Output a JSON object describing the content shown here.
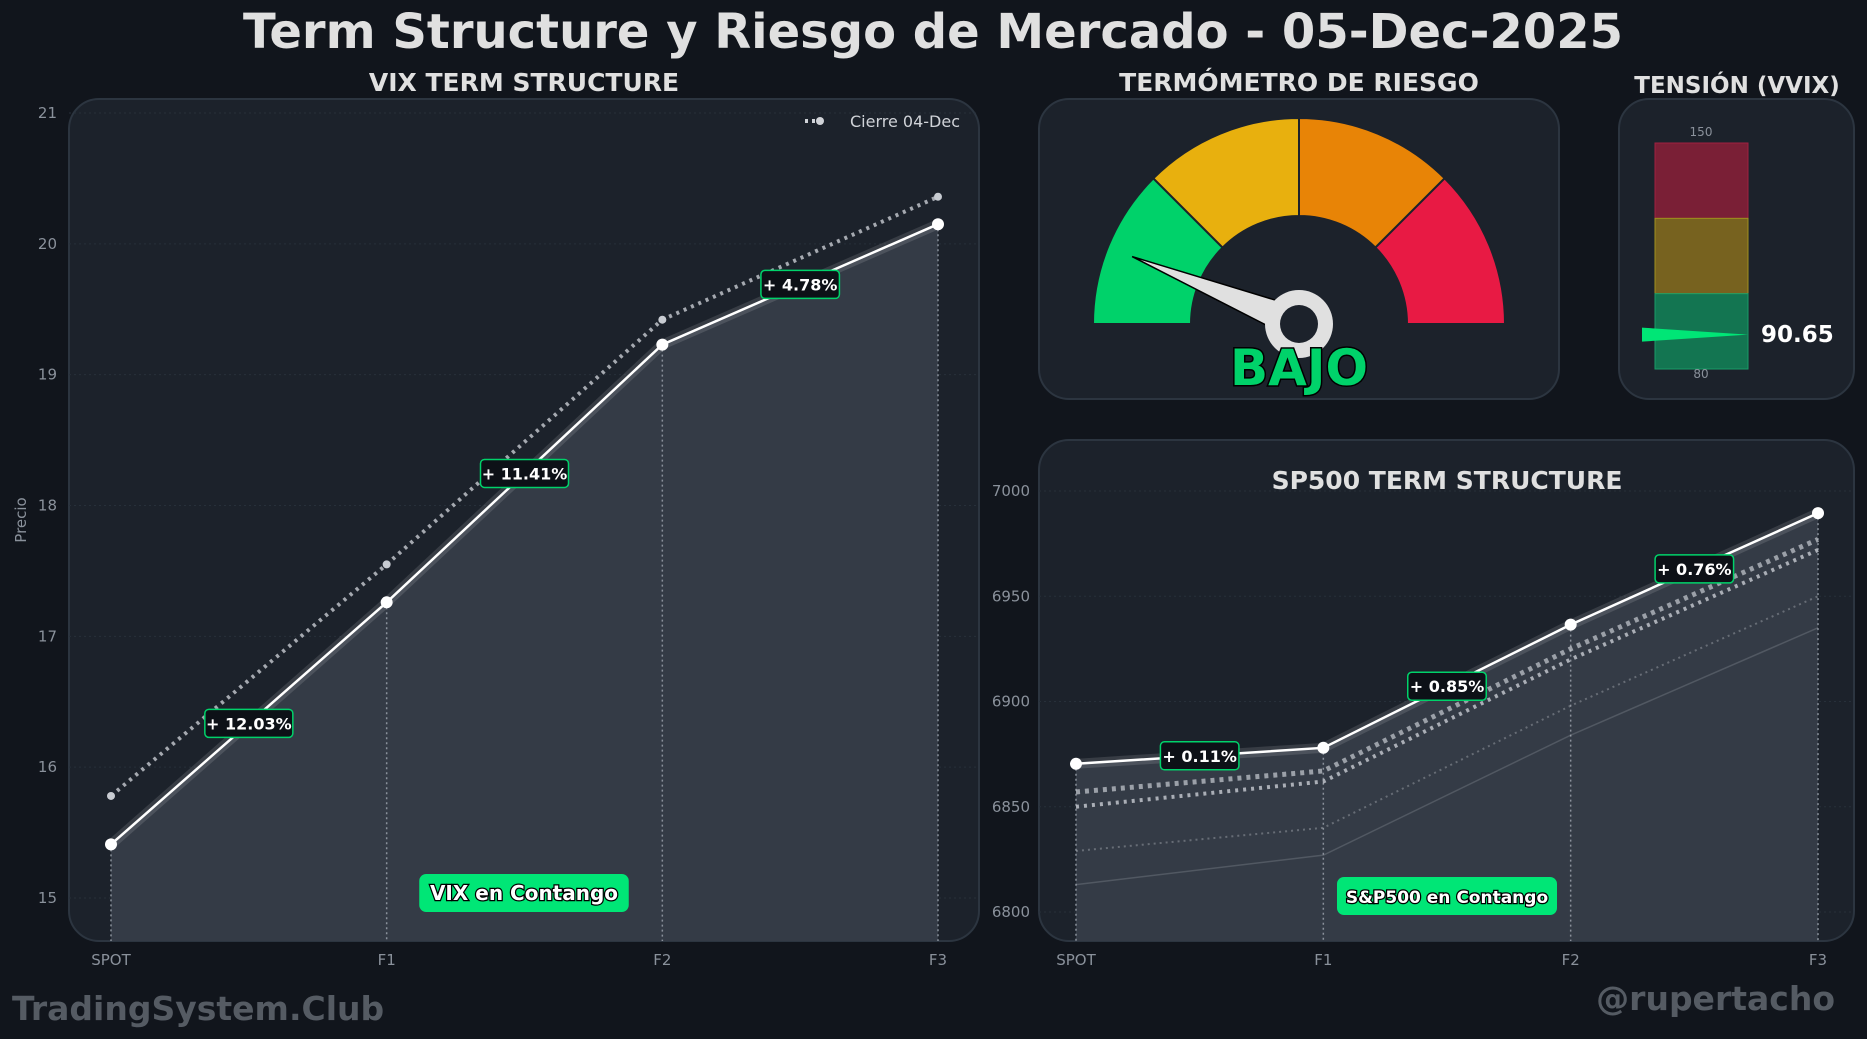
{
  "title": "Term Structure y Riesgo de Mercado - 05-Dec-2025",
  "watermark_left": "TradingSystem.Club",
  "watermark_right": "@rupertacho",
  "colors": {
    "background": "#11151c",
    "panel": "#1c222b",
    "green": "#00d26a",
    "yellow": "#e8b00e",
    "orange": "#e88406",
    "red": "#e81a44"
  },
  "chart_data": [
    {
      "type": "line",
      "title": "VIX TERM STRUCTURE",
      "ylabel": "Precio",
      "categories": [
        "SPOT",
        "F1",
        "F2",
        "F3"
      ],
      "ylim": [
        14.7,
        21
      ],
      "yticks": [
        15,
        16,
        17,
        18,
        19,
        20,
        21
      ],
      "grid": true,
      "legend_position": "top-right",
      "series": [
        {
          "values": [
            15.41,
            17.26,
            19.23,
            20.15
          ],
          "style": "solid"
        },
        {
          "name": "Cierre 04-Dec",
          "values": [
            15.78,
            17.55,
            19.42,
            20.36
          ],
          "style": "dotted"
        }
      ],
      "change_labels": [
        "+ 12.03%",
        "+ 11.41%",
        "+ 4.78%"
      ],
      "status_label": "VIX en Contango"
    },
    {
      "type": "gauge",
      "title": "TERMÓMETRO DE RIESGO",
      "segments": [
        "#00d26a",
        "#e8b00e",
        "#e88406",
        "#e81a44"
      ],
      "needle_angle_deg": 158,
      "status_label": "BAJO"
    },
    {
      "type": "bar",
      "title": "TENSIÓN (VVIX)",
      "ylim": [
        80,
        150
      ],
      "tick_top": "150",
      "tick_bottom": "80",
      "zones": [
        "#7a1f36",
        "#77621f",
        "#137551"
      ],
      "value": 90.65,
      "value_label": "90.65"
    },
    {
      "type": "line",
      "title": "SP500 TERM STRUCTURE",
      "categories": [
        "SPOT",
        "F1",
        "F2",
        "F3"
      ],
      "ylim": [
        6787,
        7015
      ],
      "yticks": [
        6800,
        6850,
        6900,
        6950,
        7000
      ],
      "grid": true,
      "series": [
        {
          "values": [
            6870.4,
            6878.0,
            6936.5,
            6989.5
          ],
          "style": "solid"
        },
        {
          "values": [
            6857,
            6867,
            6925,
            6977
          ],
          "style": "dotted-thick"
        },
        {
          "values": [
            6850,
            6862,
            6920,
            6972
          ],
          "style": "dotted"
        },
        {
          "values": [
            6829,
            6840,
            6898,
            6950
          ],
          "style": "dotted-faint"
        },
        {
          "values": [
            6813,
            6827,
            6884,
            6935
          ],
          "style": "faint"
        }
      ],
      "change_labels": [
        "+ 0.11%",
        "+ 0.85%",
        "+ 0.76%"
      ],
      "status_label": "S&P500 en Contango"
    }
  ]
}
